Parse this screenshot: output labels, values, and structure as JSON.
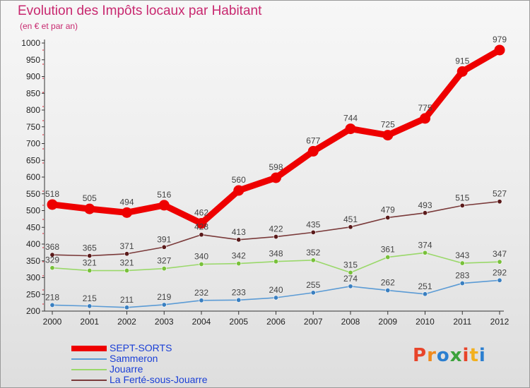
{
  "chart_data": {
    "type": "line",
    "title": "Evolution des Impôts locaux par Habitant",
    "subtitle": "(en € et par an)",
    "categories": [
      "2000",
      "2001",
      "2002",
      "2003",
      "2004",
      "2005",
      "2006",
      "2007",
      "2008",
      "2009",
      "2010",
      "2011",
      "2012"
    ],
    "ylim": [
      200,
      1000
    ],
    "yticks": [
      200,
      250,
      300,
      350,
      400,
      450,
      500,
      550,
      600,
      650,
      700,
      750,
      800,
      850,
      900,
      950,
      1000
    ],
    "grid": false,
    "legend_position": "bottom-left",
    "series": [
      {
        "name": "SEPT-SORTS",
        "color": "#ee0000",
        "point_color": "#ee0000",
        "emphasis": true,
        "values": [
          518,
          505,
          494,
          516,
          462,
          560,
          598,
          677,
          744,
          725,
          775,
          915,
          979
        ]
      },
      {
        "name": "Sammeron",
        "color": "#5b9bd5",
        "point_color": "#3a7fc0",
        "emphasis": false,
        "values": [
          218,
          215,
          211,
          219,
          232,
          233,
          240,
          255,
          274,
          262,
          251,
          283,
          292
        ]
      },
      {
        "name": "Jouarre",
        "color": "#9ad86a",
        "point_color": "#78c03a",
        "emphasis": false,
        "values": [
          329,
          321,
          321,
          327,
          340,
          342,
          348,
          352,
          315,
          361,
          374,
          343,
          347
        ]
      },
      {
        "name": "La Ferté-sous-Jouarre",
        "color": "#7a3a3a",
        "point_color": "#5a1a1a",
        "emphasis": false,
        "values": [
          368,
          365,
          371,
          391,
          428,
          413,
          422,
          435,
          451,
          479,
          493,
          515,
          527
        ]
      }
    ]
  },
  "logo": {
    "text": "Proxiti",
    "letter_colors": [
      "#e8442a",
      "#f08a1e",
      "#2c7fd0",
      "#3ca23c",
      "#e8442a",
      "#f2b01e",
      "#2c7fd0"
    ]
  }
}
